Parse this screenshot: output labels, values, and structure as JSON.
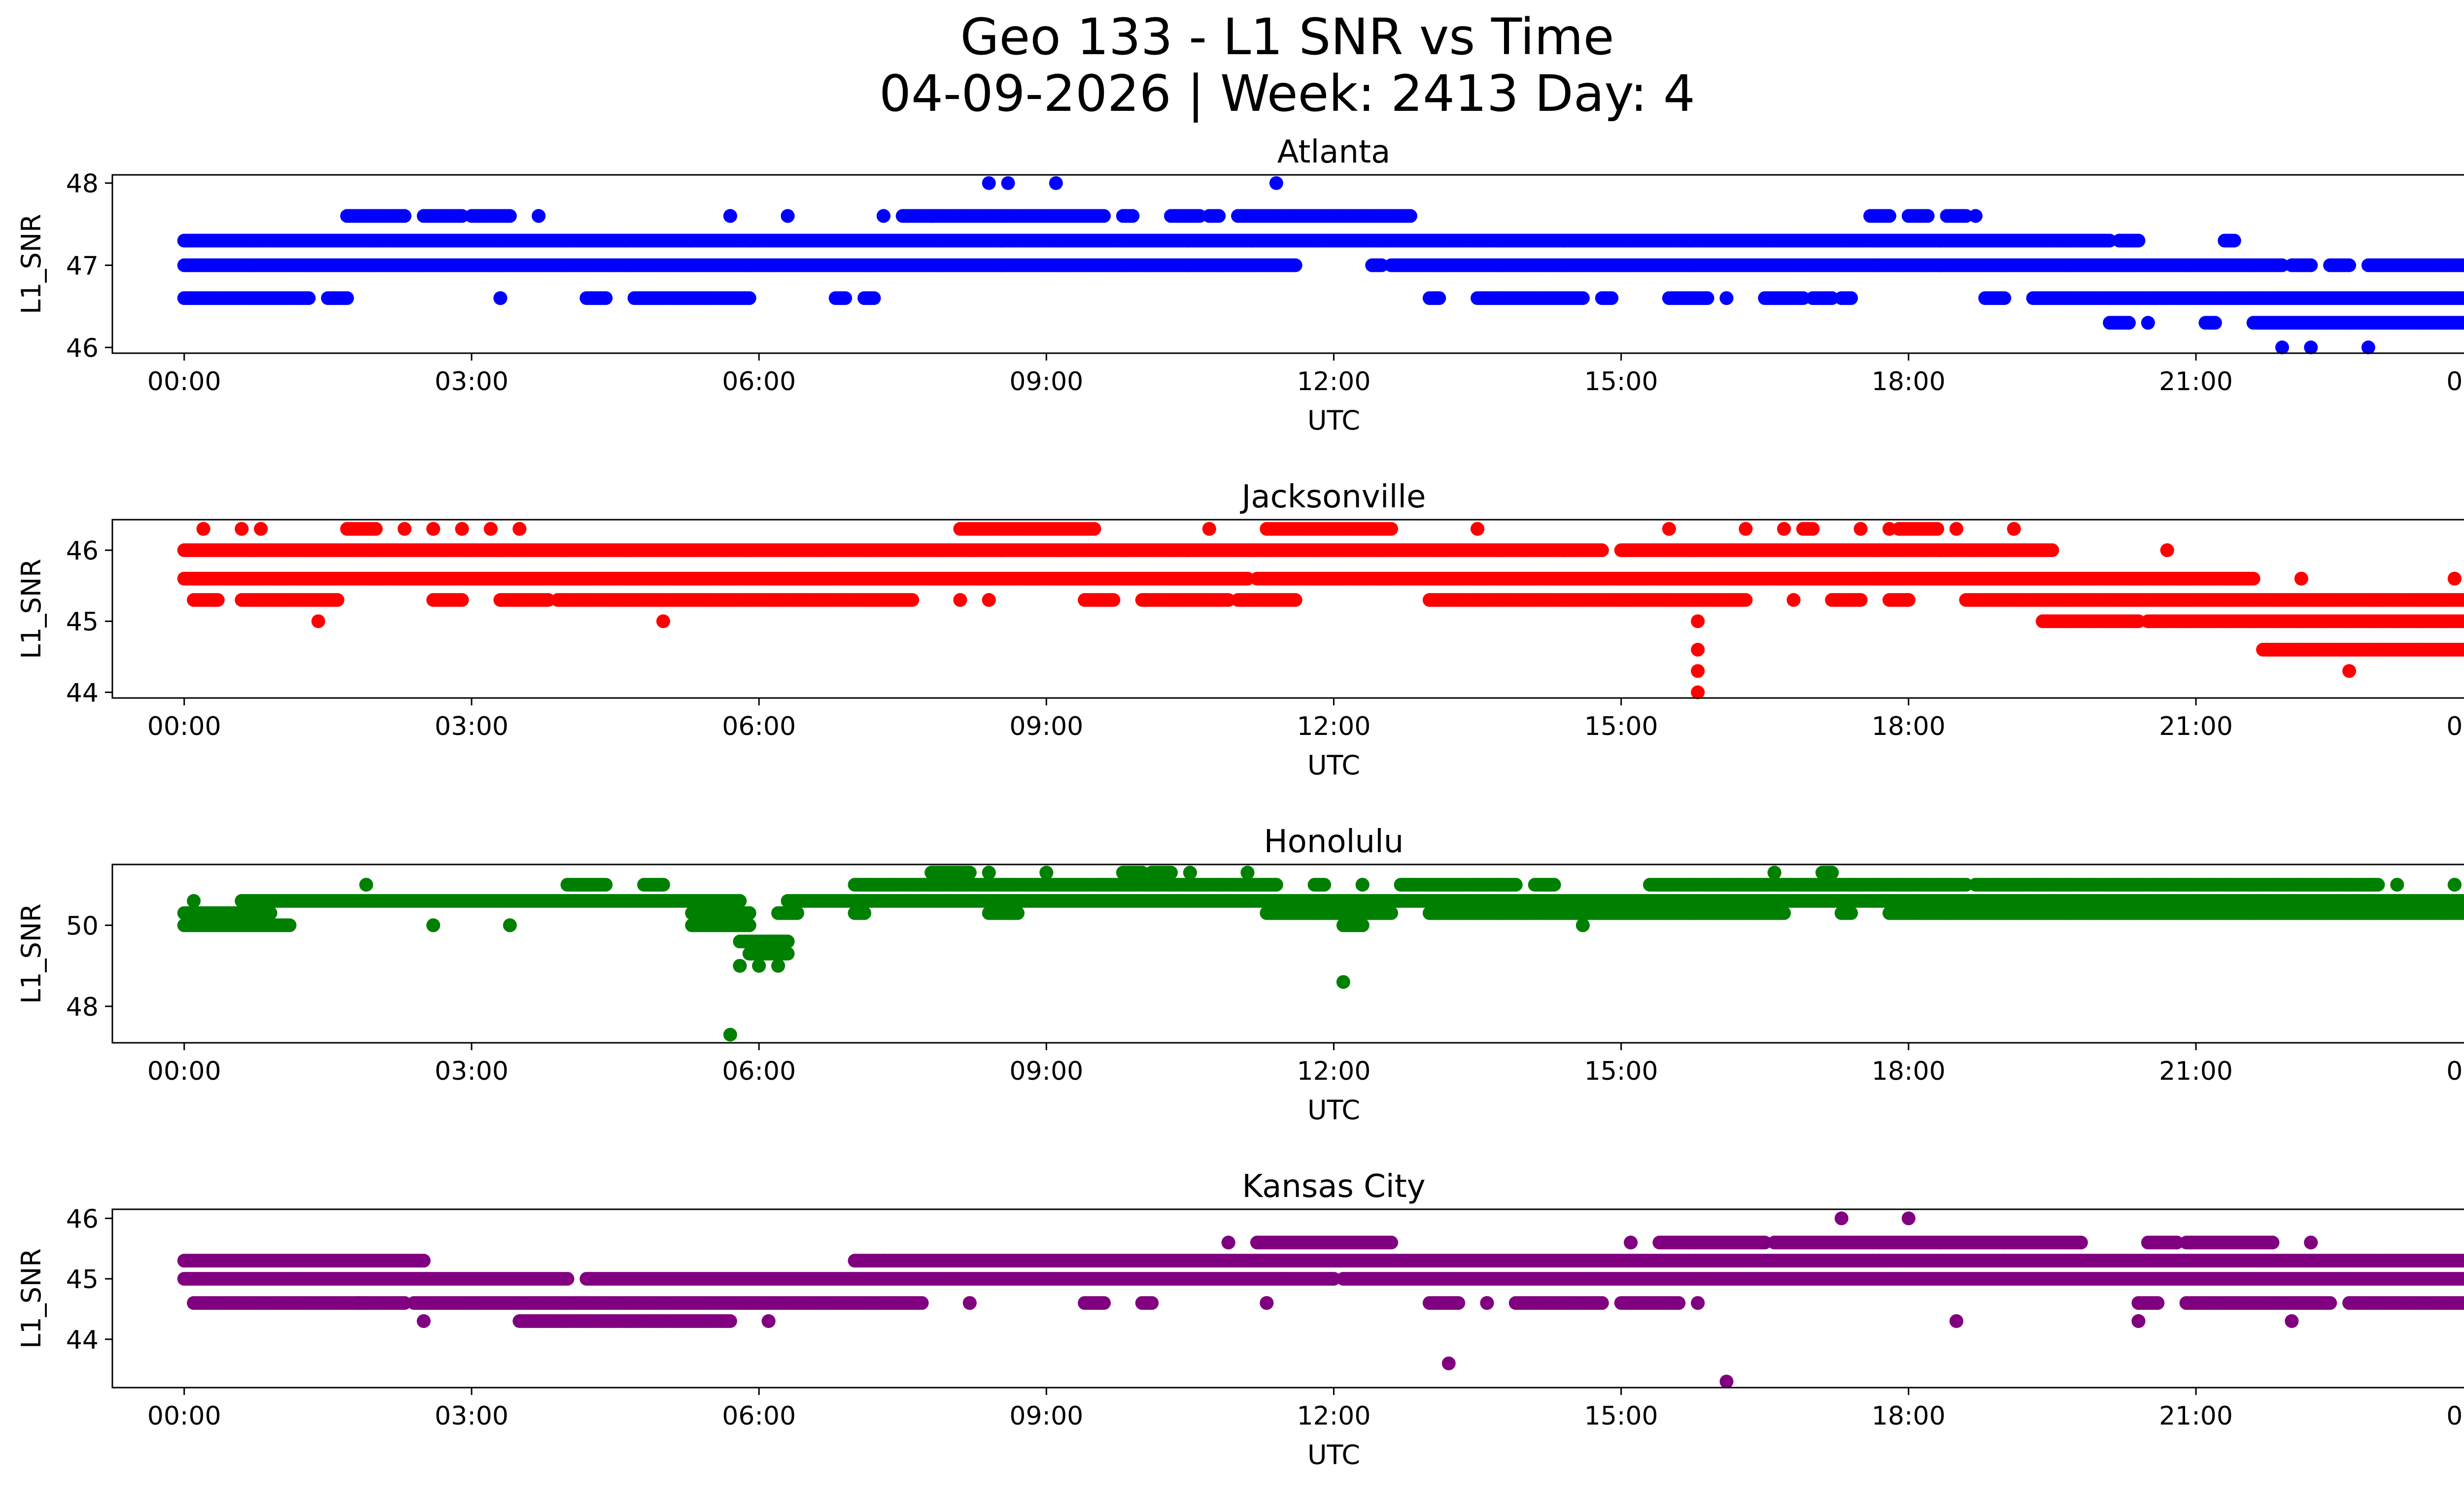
{
  "chart_data": {
    "type": "scatter",
    "suptitle_line1": "Geo 133 - L1 SNR vs Time",
    "suptitle_line2": "04-09-2026 | Week: 2413 Day: 4",
    "xlabel": "UTC",
    "ylabel": "L1_SNR",
    "xlim": [
      -0.75,
      24.75
    ],
    "xtick_values": [
      0,
      3,
      6,
      9,
      12,
      15,
      18,
      21,
      24
    ],
    "xtick_labels": [
      "00:00",
      "03:00",
      "06:00",
      "09:00",
      "12:00",
      "15:00",
      "18:00",
      "21:00",
      "00:00"
    ],
    "panels": [
      {
        "title": "Atlanta",
        "color": "#0000ff",
        "ylim": [
          45.93,
          48.1
        ],
        "yticks": [
          46,
          47,
          48
        ],
        "bands": [
          {
            "y": 47.3,
            "segments": [
              [
                0,
                20.1
              ],
              [
                20.2,
                20.4
              ],
              [
                21.3,
                21.4
              ]
            ]
          },
          {
            "y": 47.0,
            "segments": [
              [
                0,
                11.6
              ],
              [
                12.4,
                12.5
              ],
              [
                12.6,
                21.9
              ],
              [
                22.0,
                22.2
              ],
              [
                22.4,
                22.6
              ],
              [
                22.8,
                24
              ]
            ]
          },
          {
            "y": 46.6,
            "segments": [
              [
                0,
                1.3
              ],
              [
                1.5,
                1.7
              ],
              [
                3.3,
                3.3
              ],
              [
                4.2,
                4.4
              ],
              [
                4.7,
                5.9
              ],
              [
                6.8,
                6.9
              ],
              [
                7.1,
                7.2
              ],
              [
                13.0,
                13.1
              ],
              [
                13.5,
                14.6
              ],
              [
                14.8,
                14.9
              ],
              [
                15.5,
                15.9
              ],
              [
                16.1,
                16.1
              ],
              [
                16.5,
                16.9
              ],
              [
                17.0,
                17.2
              ],
              [
                17.3,
                17.4
              ],
              [
                18.8,
                19.0
              ],
              [
                19.3,
                24
              ]
            ]
          },
          {
            "y": 47.6,
            "segments": [
              [
                1.7,
                2.3
              ],
              [
                2.5,
                2.9
              ],
              [
                3.0,
                3.4
              ],
              [
                3.7,
                3.7
              ],
              [
                5.7,
                5.7
              ],
              [
                6.3,
                6.3
              ],
              [
                7.3,
                7.3
              ],
              [
                7.5,
                7.8
              ],
              [
                7.8,
                9.6
              ],
              [
                9.8,
                9.9
              ],
              [
                10.3,
                10.6
              ],
              [
                10.7,
                10.8
              ],
              [
                11.0,
                12.8
              ],
              [
                17.6,
                17.8
              ],
              [
                18.0,
                18.2
              ],
              [
                18.4,
                18.6
              ],
              [
                18.7,
                18.7
              ]
            ]
          },
          {
            "y": 46.3,
            "segments": [
              [
                20.1,
                20.3
              ],
              [
                20.5,
                20.5
              ],
              [
                21.1,
                21.2
              ],
              [
                21.6,
                24.0
              ]
            ]
          }
        ],
        "outliers": [
          [
            8.4,
            48.0
          ],
          [
            8.6,
            48.0
          ],
          [
            9.1,
            48.0
          ],
          [
            11.4,
            48.0
          ],
          [
            21.9,
            46.0
          ],
          [
            22.2,
            46.0
          ],
          [
            22.8,
            46.0
          ]
        ]
      },
      {
        "title": "Jacksonville",
        "color": "#ff0000",
        "ylim": [
          43.92,
          46.43
        ],
        "yticks": [
          44,
          45,
          46
        ],
        "bands": [
          {
            "y": 46.0,
            "segments": [
              [
                0,
                8.2
              ],
              [
                8.2,
                14.8
              ],
              [
                15.0,
                19.5
              ],
              [
                20.7,
                20.7
              ]
            ]
          },
          {
            "y": 45.6,
            "segments": [
              [
                0,
                11.1
              ],
              [
                11.2,
                21.6
              ],
              [
                22.1,
                22.1
              ],
              [
                23.7,
                23.7
              ]
            ]
          },
          {
            "y": 45.3,
            "segments": [
              [
                0.1,
                0.35
              ],
              [
                0.6,
                1.6
              ],
              [
                2.6,
                2.9
              ],
              [
                3.3,
                3.8
              ],
              [
                3.9,
                7.6
              ],
              [
                8.1,
                8.1
              ],
              [
                8.4,
                8.4
              ],
              [
                9.4,
                9.7
              ],
              [
                10.0,
                10.9
              ],
              [
                11.0,
                11.6
              ],
              [
                13.0,
                15.8
              ],
              [
                15.8,
                16.3
              ],
              [
                16.8,
                16.8
              ],
              [
                17.2,
                17.5
              ],
              [
                17.8,
                18.0
              ],
              [
                18.6,
                24.0
              ]
            ]
          },
          {
            "y": 45.0,
            "segments": [
              [
                19.4,
                20.4
              ],
              [
                20.5,
                24.0
              ]
            ]
          },
          {
            "y": 46.3,
            "segments": [
              [
                0.2,
                0.2
              ],
              [
                0.6,
                0.6
              ],
              [
                0.8,
                0.8
              ],
              [
                1.7,
                2.0
              ],
              [
                2.3,
                2.3
              ],
              [
                2.6,
                2.6
              ],
              [
                2.9,
                2.9
              ],
              [
                3.2,
                3.2
              ],
              [
                3.5,
                3.5
              ],
              [
                8.1,
                9.5
              ],
              [
                10.7,
                10.7
              ],
              [
                11.3,
                12.6
              ],
              [
                13.5,
                13.5
              ],
              [
                15.5,
                15.5
              ],
              [
                16.3,
                16.3
              ],
              [
                16.7,
                16.7
              ],
              [
                16.9,
                17.0
              ],
              [
                17.5,
                17.5
              ],
              [
                17.8,
                17.8
              ],
              [
                17.9,
                18.3
              ],
              [
                18.5,
                18.5
              ],
              [
                19.1,
                19.1
              ]
            ]
          },
          {
            "y": 44.6,
            "segments": [
              [
                21.7,
                23.9
              ]
            ]
          }
        ],
        "outliers": [
          [
            1.4,
            45.0
          ],
          [
            5.0,
            45.0
          ],
          [
            15.8,
            45.0
          ],
          [
            15.8,
            44.6
          ],
          [
            15.8,
            44.3
          ],
          [
            15.8,
            44.0
          ],
          [
            22.6,
            44.3
          ],
          [
            23.7,
            45.6
          ]
        ]
      },
      {
        "title": "Honolulu",
        "color": "#008000",
        "ylim": [
          47.1,
          51.5
        ],
        "yticks": [
          48,
          50
        ],
        "bands": [
          {
            "y": 50.0,
            "segments": [
              [
                0,
                1.1
              ],
              [
                2.6,
                2.6
              ],
              [
                3.4,
                3.4
              ],
              [
                5.3,
                5.9
              ],
              [
                12.1,
                12.3
              ],
              [
                14.6,
                14.6
              ]
            ]
          },
          {
            "y": 50.3,
            "segments": [
              [
                0,
                0.9
              ],
              [
                5.3,
                5.9
              ],
              [
                6.2,
                6.4
              ],
              [
                7.0,
                7.1
              ],
              [
                8.4,
                8.7
              ],
              [
                11.3,
                12.6
              ],
              [
                13.0,
                16.7
              ],
              [
                17.3,
                17.4
              ],
              [
                17.8,
                24.0
              ]
            ]
          },
          {
            "y": 50.6,
            "segments": [
              [
                0.6,
                5.8
              ],
              [
                6.3,
                24.0
              ]
            ]
          },
          {
            "y": 51.0,
            "segments": [
              [
                1.9,
                1.9
              ],
              [
                4.0,
                4.4
              ],
              [
                4.8,
                5.0
              ],
              [
                7.0,
                11.4
              ],
              [
                11.8,
                11.9
              ],
              [
                12.3,
                12.3
              ],
              [
                12.7,
                13.9
              ],
              [
                14.1,
                14.3
              ],
              [
                15.3,
                18.6
              ],
              [
                18.7,
                19.4
              ],
              [
                19.4,
                22.9
              ],
              [
                23.1,
                23.1
              ],
              [
                23.7,
                23.7
              ]
            ]
          },
          {
            "y": 51.3,
            "segments": [
              [
                7.8,
                8.2
              ],
              [
                8.4,
                8.4
              ],
              [
                9.0,
                9.0
              ],
              [
                9.8,
                10.0
              ],
              [
                10.1,
                10.3
              ],
              [
                10.5,
                10.5
              ],
              [
                11.1,
                11.1
              ],
              [
                16.6,
                16.6
              ],
              [
                17.1,
                17.2
              ]
            ]
          },
          {
            "y": 49.6,
            "segments": [
              [
                5.8,
                6.3
              ]
            ]
          },
          {
            "y": 49.3,
            "segments": [
              [
                5.9,
                6.3
              ]
            ]
          },
          {
            "y": 49.0,
            "segments": [
              [
                5.8,
                5.8
              ],
              [
                6.0,
                6.0
              ],
              [
                6.2,
                6.2
              ]
            ]
          }
        ],
        "outliers": [
          [
            5.7,
            47.3
          ],
          [
            12.1,
            48.6
          ],
          [
            0.1,
            50.6
          ],
          [
            0.6,
            50.6
          ]
        ]
      },
      {
        "title": "Kansas City",
        "color": "#800080",
        "ylim": [
          43.2,
          46.15
        ],
        "yticks": [
          44,
          45,
          46
        ],
        "bands": [
          {
            "y": 45.3,
            "segments": [
              [
                0,
                2.5
              ],
              [
                7.0,
                7.3
              ],
              [
                7.3,
                24.0
              ]
            ]
          },
          {
            "y": 45.0,
            "segments": [
              [
                0,
                4.0
              ],
              [
                4.2,
                11.5
              ],
              [
                11.5,
                12.0
              ],
              [
                12.1,
                24.0
              ]
            ]
          },
          {
            "y": 44.6,
            "segments": [
              [
                0.1,
                1.9
              ],
              [
                1.8,
                2.3
              ],
              [
                2.4,
                7.7
              ],
              [
                8.2,
                8.2
              ],
              [
                9.4,
                9.6
              ],
              [
                10.0,
                10.1
              ],
              [
                11.3,
                11.3
              ],
              [
                13.0,
                13.3
              ],
              [
                13.6,
                13.6
              ],
              [
                13.9,
                14.8
              ],
              [
                15.0,
                15.6
              ],
              [
                15.8,
                15.8
              ],
              [
                20.4,
                20.6
              ],
              [
                20.9,
                22.4
              ],
              [
                22.6,
                24.0
              ]
            ]
          },
          {
            "y": 44.3,
            "segments": [
              [
                2.5,
                2.5
              ],
              [
                3.5,
                5.7
              ],
              [
                6.1,
                6.1
              ],
              [
                18.5,
                18.5
              ],
              [
                20.4,
                20.4
              ],
              [
                22.0,
                22.0
              ]
            ]
          },
          {
            "y": 45.6,
            "segments": [
              [
                10.9,
                10.9
              ],
              [
                11.2,
                12.6
              ],
              [
                15.1,
                15.1
              ],
              [
                15.4,
                16.5
              ],
              [
                16.6,
                19.8
              ],
              [
                20.5,
                20.8
              ],
              [
                20.9,
                21.8
              ],
              [
                22.2,
                22.2
              ]
            ]
          }
        ],
        "outliers": [
          [
            13.2,
            43.6
          ],
          [
            16.1,
            43.3
          ],
          [
            17.3,
            46.0
          ],
          [
            18.0,
            46.0
          ]
        ]
      }
    ]
  }
}
